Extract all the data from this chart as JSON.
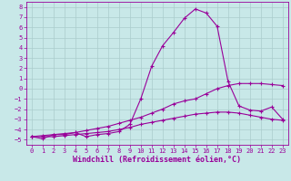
{
  "xlabel": "Windchill (Refroidissement éolien,°C)",
  "background_color": "#c8e8e8",
  "grid_color": "#b0d0d0",
  "line_color": "#990099",
  "xlim": [
    -0.5,
    23.5
  ],
  "ylim": [
    -5.5,
    8.5
  ],
  "xticks": [
    0,
    1,
    2,
    3,
    4,
    5,
    6,
    7,
    8,
    9,
    10,
    11,
    12,
    13,
    14,
    15,
    16,
    17,
    18,
    19,
    20,
    21,
    22,
    23
  ],
  "yticks": [
    -5,
    -4,
    -3,
    -2,
    -1,
    0,
    1,
    2,
    3,
    4,
    5,
    6,
    7,
    8
  ],
  "line1_x": [
    0,
    1,
    2,
    3,
    4,
    5,
    6,
    7,
    8,
    9,
    10,
    11,
    12,
    13,
    14,
    15,
    16,
    17,
    18,
    19,
    20,
    21,
    22,
    23
  ],
  "line1_y": [
    -4.7,
    -4.9,
    -4.5,
    -4.5,
    -4.3,
    -4.7,
    -4.5,
    -4.4,
    -4.2,
    -3.5,
    -1.0,
    2.2,
    4.2,
    5.5,
    6.9,
    7.8,
    7.4,
    6.1,
    0.7,
    -1.7,
    -2.1,
    -2.2,
    -1.8,
    -3.0
  ],
  "line2_x": [
    0,
    1,
    2,
    3,
    4,
    5,
    6,
    7,
    8,
    9,
    10,
    11,
    12,
    13,
    14,
    15,
    16,
    17,
    18,
    19,
    20,
    21,
    22,
    23
  ],
  "line2_y": [
    -4.7,
    -4.6,
    -4.5,
    -4.4,
    -4.3,
    -4.1,
    -3.9,
    -3.7,
    -3.4,
    -3.1,
    -2.8,
    -2.4,
    -2.0,
    -1.5,
    -1.2,
    -1.0,
    -0.5,
    0.0,
    0.3,
    0.5,
    0.5,
    0.5,
    0.4,
    0.3
  ],
  "line3_x": [
    0,
    1,
    2,
    3,
    4,
    5,
    6,
    7,
    8,
    9,
    10,
    11,
    12,
    13,
    14,
    15,
    16,
    17,
    18,
    19,
    20,
    21,
    22,
    23
  ],
  "line3_y": [
    -4.7,
    -4.7,
    -4.7,
    -4.6,
    -4.5,
    -4.4,
    -4.3,
    -4.2,
    -4.0,
    -3.8,
    -3.5,
    -3.3,
    -3.1,
    -2.9,
    -2.7,
    -2.5,
    -2.4,
    -2.3,
    -2.3,
    -2.4,
    -2.6,
    -2.8,
    -3.0,
    -3.1
  ],
  "marker": "+",
  "markersize": 3,
  "linewidth": 0.8,
  "tick_fontsize": 5,
  "label_fontsize": 6
}
